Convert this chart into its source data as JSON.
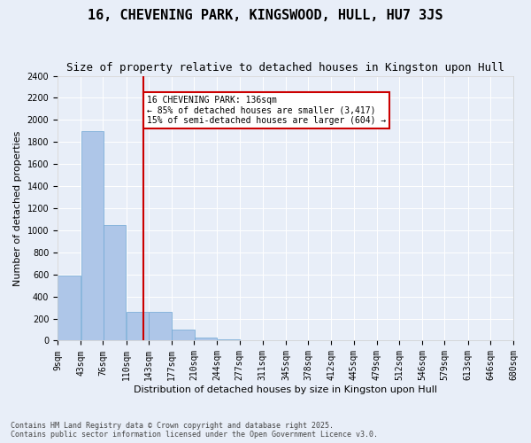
{
  "title": "16, CHEVENING PARK, KINGSWOOD, HULL, HU7 3JS",
  "subtitle": "Size of property relative to detached houses in Kingston upon Hull",
  "xlabel": "Distribution of detached houses by size in Kingston upon Hull",
  "ylabel": "Number of detached properties",
  "bins": [
    9,
    43,
    76,
    110,
    143,
    177,
    210,
    244,
    277,
    311,
    345,
    378,
    412,
    445,
    479,
    512,
    546,
    579,
    613,
    646,
    680
  ],
  "bin_labels": [
    "9sqm",
    "43sqm",
    "76sqm",
    "110sqm",
    "143sqm",
    "177sqm",
    "210sqm",
    "244sqm",
    "277sqm",
    "311sqm",
    "345sqm",
    "378sqm",
    "412sqm",
    "445sqm",
    "479sqm",
    "512sqm",
    "546sqm",
    "579sqm",
    "613sqm",
    "646sqm",
    "680sqm"
  ],
  "values": [
    590,
    1900,
    1050,
    260,
    260,
    100,
    30,
    10,
    5,
    2,
    1,
    0,
    0,
    0,
    0,
    0,
    0,
    0,
    0,
    0
  ],
  "bar_color": "#aec6e8",
  "bar_edge_color": "#6fa8d4",
  "vline_x": 136,
  "vline_color": "#cc0000",
  "ylim": [
    0,
    2400
  ],
  "yticks": [
    0,
    200,
    400,
    600,
    800,
    1000,
    1200,
    1400,
    1600,
    1800,
    2000,
    2200,
    2400
  ],
  "annotation_text": "16 CHEVENING PARK: 136sqm\n← 85% of detached houses are smaller (3,417)\n15% of semi-detached houses are larger (604) →",
  "annotation_box_color": "#ffffff",
  "annotation_border_color": "#cc0000",
  "bg_color": "#e8eef8",
  "plot_bg_color": "#e8eef8",
  "footer": "Contains HM Land Registry data © Crown copyright and database right 2025.\nContains public sector information licensed under the Open Government Licence v3.0.",
  "title_fontsize": 11,
  "subtitle_fontsize": 9,
  "label_fontsize": 8,
  "tick_fontsize": 7
}
